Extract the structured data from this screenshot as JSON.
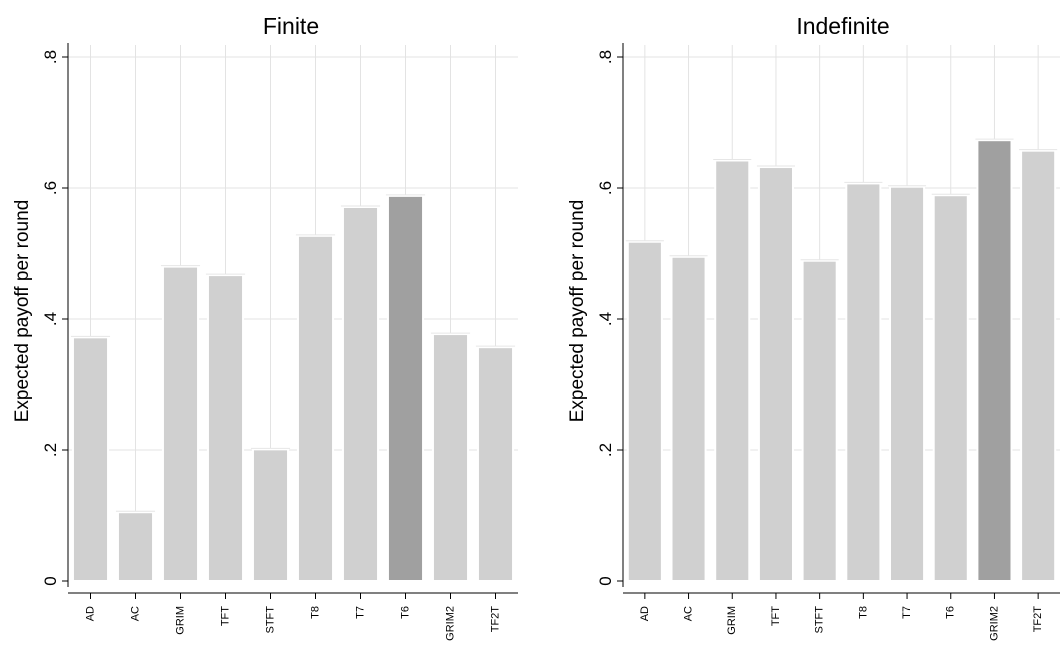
{
  "chart_data": [
    {
      "type": "bar",
      "title": "Finite",
      "ylabel": "Expected payoff per round",
      "xlabel": "",
      "categories": [
        "AD",
        "AC",
        "GRIM",
        "TFT",
        "STFT",
        "T8",
        "T7",
        "T6",
        "GRIM2",
        "TF2T"
      ],
      "values": [
        0.372,
        0.105,
        0.48,
        0.467,
        0.201,
        0.527,
        0.571,
        0.588,
        0.377,
        0.357
      ],
      "highlight_index": 7,
      "ylim": [
        0,
        0.8
      ],
      "yticks": [
        0,
        0.2,
        0.4,
        0.6,
        0.8
      ],
      "ytick_labels": [
        "0",
        ".2",
        ".4",
        ".6",
        ".8"
      ],
      "grid": true,
      "legend": "none"
    },
    {
      "type": "bar",
      "title": "Indefinite",
      "ylabel": "Expected payoff per round",
      "xlabel": "",
      "categories": [
        "AD",
        "AC",
        "GRIM",
        "TFT",
        "STFT",
        "T8",
        "T7",
        "T6",
        "GRIM2",
        "TF2T"
      ],
      "values": [
        0.518,
        0.495,
        0.642,
        0.632,
        0.489,
        0.607,
        0.602,
        0.589,
        0.673,
        0.657
      ],
      "highlight_index": 8,
      "ylim": [
        0,
        0.8
      ],
      "yticks": [
        0,
        0.2,
        0.4,
        0.6,
        0.8
      ],
      "ytick_labels": [
        "0",
        ".2",
        ".4",
        ".6",
        ".8"
      ],
      "grid": true,
      "legend": "none"
    }
  ],
  "colors": {
    "bar": "#d0d0d0",
    "highlight": "#a0a0a0",
    "grid": "#e3e3e3",
    "axis": "#000000"
  }
}
